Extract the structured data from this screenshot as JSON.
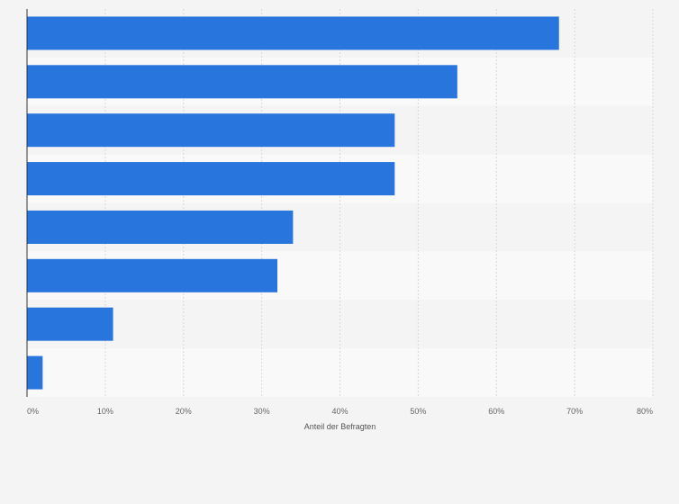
{
  "chart_data": {
    "type": "bar",
    "orientation": "horizontal",
    "title": "",
    "xlabel": "Anteil der Befragten",
    "ylabel": "",
    "categories": [
      "",
      "",
      "",
      "",
      "",
      "",
      "",
      ""
    ],
    "values": [
      68,
      55,
      47,
      47,
      34,
      32,
      11,
      2
    ],
    "xlim": [
      0,
      80
    ],
    "ticks": [
      0,
      10,
      20,
      30,
      40,
      50,
      60,
      70,
      80
    ],
    "tick_labels": [
      "0%",
      "10%",
      "20%",
      "30%",
      "40%",
      "50%",
      "60%",
      "70%",
      "80%"
    ],
    "grid": true,
    "legend": "none",
    "colors": {
      "bar": "#2876dd",
      "background": "#f4f4f4",
      "band_light": "#f9f9f9",
      "grid": "#d8d8d8",
      "axis": "#333333"
    }
  }
}
